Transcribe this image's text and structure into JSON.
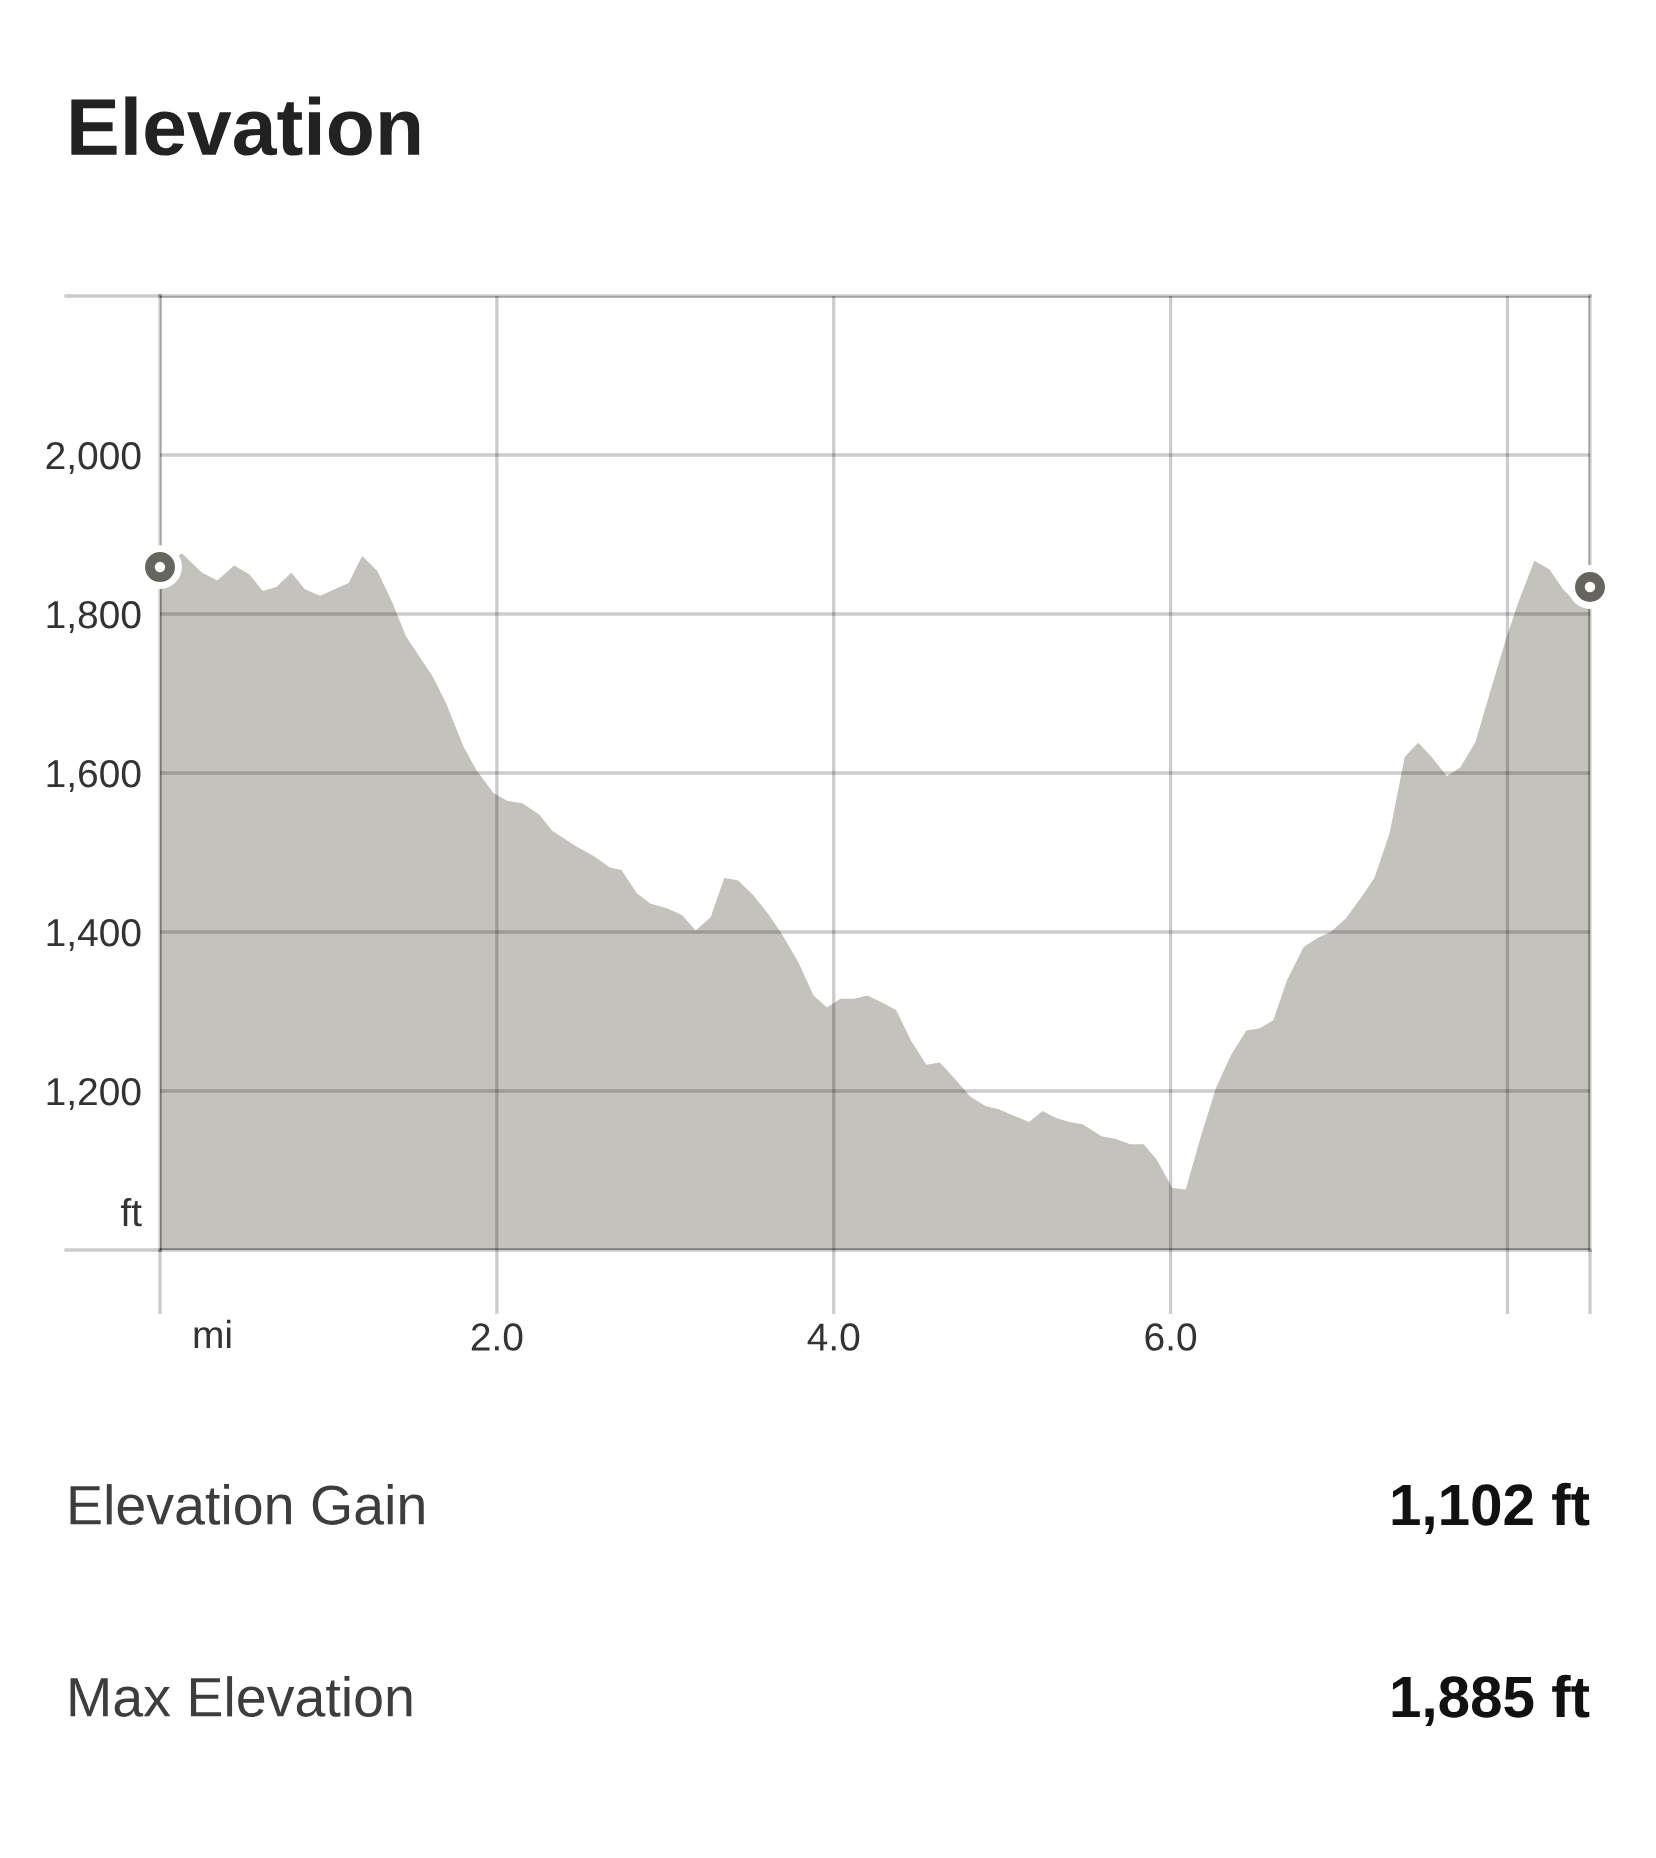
{
  "chart_data": {
    "type": "area",
    "title": "Elevation",
    "xlabel": "mi",
    "ylabel": "ft",
    "xlim": [
      0,
      8.49
    ],
    "ylim": [
      1000,
      2200
    ],
    "xticks": [
      {
        "value": 0,
        "label": null
      },
      {
        "value": 2,
        "label": "2.0"
      },
      {
        "value": 4,
        "label": "4.0"
      },
      {
        "value": 6,
        "label": "6.0"
      },
      {
        "value": 8,
        "label": null
      },
      {
        "value": 8.49,
        "label": null
      }
    ],
    "yticks": [
      {
        "value": 1000,
        "label": null
      },
      {
        "value": 1200,
        "label": "1,200"
      },
      {
        "value": 1400,
        "label": "1,400"
      },
      {
        "value": 1600,
        "label": "1,600"
      },
      {
        "value": 1800,
        "label": "1,800"
      },
      {
        "value": 2000,
        "label": "2,000"
      },
      {
        "value": 2200,
        "label": null
      }
    ],
    "grid": true,
    "series": [
      {
        "color": "#c3c2bd",
        "x": [
          0,
          0.13,
          0.25,
          0.34,
          0.44,
          0.53,
          0.61,
          0.69,
          0.78,
          0.86,
          0.95,
          1.12,
          1.2,
          1.29,
          1.38,
          1.46,
          1.62,
          1.7,
          1.8,
          1.88,
          1.98,
          2.06,
          2.15,
          2.25,
          2.33,
          2.47,
          2.58,
          2.67,
          2.74,
          2.83,
          2.91,
          3.01,
          3.1,
          3.18,
          3.27,
          3.35,
          3.43,
          3.52,
          3.61,
          3.69,
          3.79,
          3.88,
          3.96,
          4.04,
          4.12,
          4.2,
          4.28,
          4.37,
          4.46,
          4.55,
          4.63,
          4.72,
          4.81,
          4.9,
          4.98,
          5.08,
          5.16,
          5.24,
          5.32,
          5.4,
          5.48,
          5.59,
          5.67,
          5.76,
          5.84,
          5.92,
          6.01,
          6.09,
          6.18,
          6.27,
          6.36,
          6.45,
          6.53,
          6.61,
          6.69,
          6.79,
          6.87,
          6.95,
          7.04,
          7.13,
          7.21,
          7.3,
          7.39,
          7.47,
          7.55,
          7.64,
          7.72,
          7.81,
          7.9,
          7.99,
          8.07,
          8.16,
          8.25,
          8.33,
          8.41,
          8.49
        ],
        "values": [
          1859,
          1876,
          1852,
          1842,
          1861,
          1850,
          1829,
          1834,
          1852,
          1831,
          1823,
          1839,
          1873,
          1854,
          1814,
          1772,
          1721,
          1687,
          1634,
          1603,
          1575,
          1565,
          1562,
          1548,
          1527,
          1508,
          1495,
          1481,
          1478,
          1449,
          1436,
          1430,
          1421,
          1402,
          1419,
          1468,
          1465,
          1447,
          1423,
          1398,
          1362,
          1320,
          1305,
          1316,
          1316,
          1320,
          1312,
          1302,
          1263,
          1233,
          1236,
          1215,
          1193,
          1181,
          1177,
          1168,
          1161,
          1175,
          1166,
          1161,
          1158,
          1143,
          1140,
          1133,
          1133,
          1113,
          1078,
          1076,
          1143,
          1204,
          1246,
          1276,
          1279,
          1289,
          1339,
          1381,
          1392,
          1400,
          1417,
          1443,
          1468,
          1524,
          1620,
          1638,
          1620,
          1596,
          1607,
          1639,
          1704,
          1768,
          1818,
          1867,
          1856,
          1831,
          1814,
          1806
        ]
      },
      {
        "type": "scatter",
        "color": "#65645f",
        "marker": "circle",
        "x": [
          0,
          8.49
        ],
        "values": [
          1859,
          1834
        ]
      }
    ],
    "annotations": [
      "Elevation Gain",
      "1,102 ft",
      "Max Elevation",
      "1,885 ft"
    ]
  }
}
